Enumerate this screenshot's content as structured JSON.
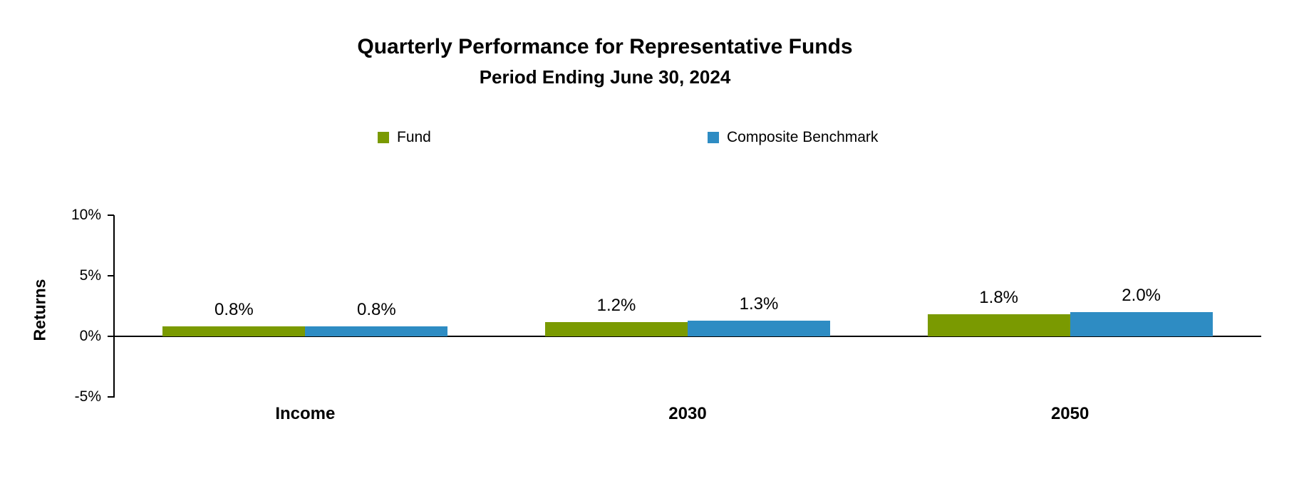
{
  "header": {
    "title": "Quarterly Performance for Representative Funds",
    "subtitle": "Period Ending June 30, 2024"
  },
  "chart_data": {
    "type": "bar",
    "title": "Quarterly Performance for Representative Funds",
    "subtitle": "Period Ending June 30, 2024",
    "categories": [
      "Income",
      "2030",
      "2050"
    ],
    "series": [
      {
        "name": "Fund",
        "color": "#7A9A01",
        "values": [
          0.8,
          1.2,
          1.8
        ],
        "labels": [
          "0.8%",
          "1.2%",
          "1.8%"
        ]
      },
      {
        "name": "Composite Benchmark",
        "color": "#2E8CC3",
        "values": [
          0.8,
          1.3,
          2.0
        ],
        "labels": [
          "0.8%",
          "1.3%",
          "2.0%"
        ]
      }
    ],
    "ylabel": "Returns",
    "xlabel": "",
    "y_ticks": [
      {
        "value": 10,
        "label": "10%"
      },
      {
        "value": 5,
        "label": "5%"
      },
      {
        "value": 0,
        "label": "0%"
      },
      {
        "value": -5,
        "label": "-5%"
      }
    ],
    "ylim": [
      -5,
      10
    ],
    "grid": false,
    "legend_position": "top",
    "axis_color": "#000000",
    "text_color": "#000000",
    "background_color": "#FFFFFF"
  }
}
